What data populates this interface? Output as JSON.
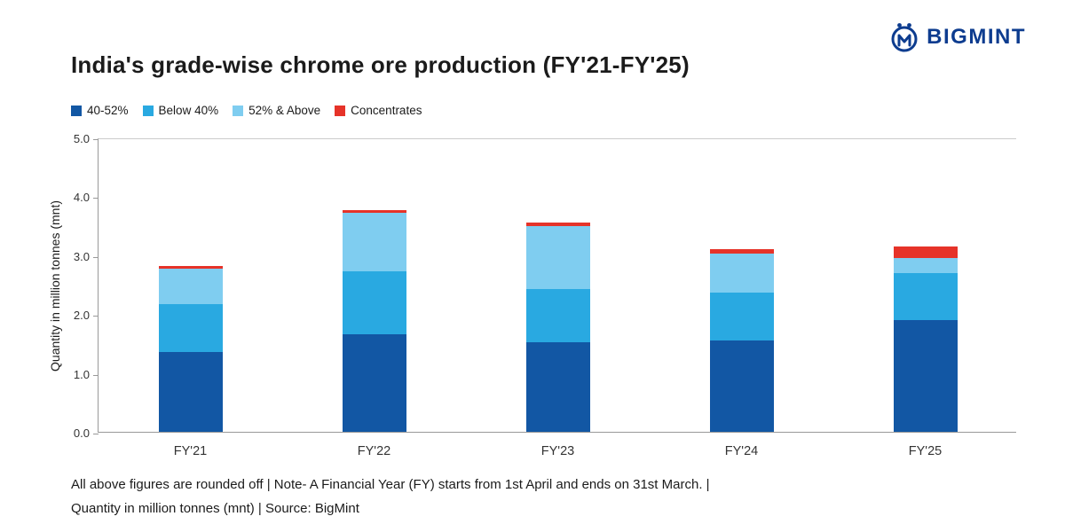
{
  "brand": {
    "name": "BIGMINT",
    "color": "#0d3c8f"
  },
  "chart_data": {
    "type": "bar",
    "subtype": "stacked",
    "title": "India's grade-wise chrome ore production (FY'21-FY'25)",
    "xlabel": "",
    "ylabel": "Quantity in million tonnes (mnt)",
    "ylim": [
      0,
      5
    ],
    "ytick_step": 1,
    "ytick_labels": [
      "0.0",
      "1.0",
      "2.0",
      "3.0",
      "4.0",
      "5.0"
    ],
    "grid": false,
    "legend_position": "top-left",
    "categories": [
      "FY'21",
      "FY'22",
      "FY'23",
      "FY'24",
      "FY'25"
    ],
    "series": [
      {
        "name": "40-52%",
        "color": "#1257a4",
        "values": [
          1.35,
          1.65,
          1.52,
          1.55,
          1.9
        ]
      },
      {
        "name": "Below 40%",
        "color": "#29a9e1",
        "values": [
          0.82,
          1.07,
          0.9,
          0.82,
          0.8
        ]
      },
      {
        "name": "52% & Above",
        "color": "#7fcdf0",
        "values": [
          0.6,
          1.0,
          1.08,
          0.66,
          0.25
        ]
      },
      {
        "name": "Concentrates",
        "color": "#e63329",
        "values": [
          0.05,
          0.05,
          0.06,
          0.08,
          0.2
        ]
      }
    ]
  },
  "footer": {
    "line1": "All above figures are rounded off | Note- A Financial Year (FY) starts from 1st April and ends on 31st March. |",
    "line2": "Quantity in million tonnes (mnt) | Source: BigMint"
  }
}
